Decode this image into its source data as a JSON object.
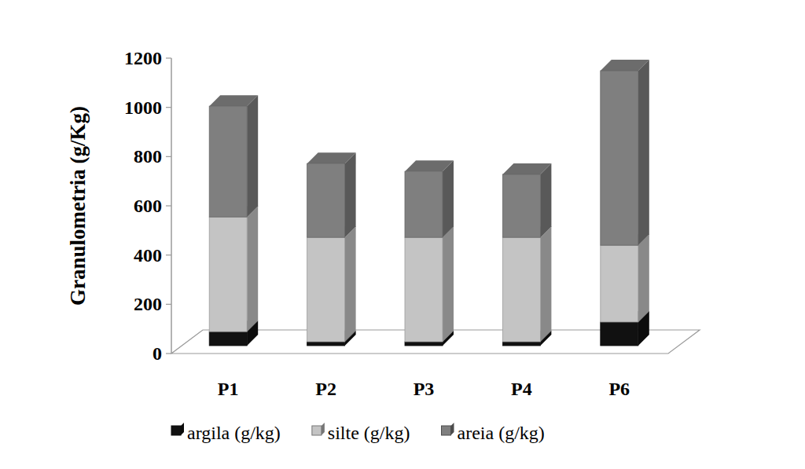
{
  "chart_data": {
    "type": "bar",
    "stacked": true,
    "grid": false,
    "legend": "bottom",
    "y_label": "Granulometria (g/Kg)",
    "categories": [
      "P1",
      "P2",
      "P3",
      "P4",
      "P6"
    ],
    "series": [
      {
        "name": "argila (g/kg)",
        "color": "#111111",
        "values": [
          57,
          16,
          16,
          16,
          96
        ]
      },
      {
        "name": "silte (g/kg)",
        "color": "#c4c4c4",
        "values": [
          466,
          424,
          424,
          424,
          312
        ]
      },
      {
        "name": "areia (g/kg)",
        "color": "#7f7f7f",
        "values": [
          450,
          300,
          268,
          256,
          709
        ]
      }
    ],
    "ylim": [
      0,
      1200
    ],
    "yticks": [
      0,
      200,
      400,
      600,
      800,
      1000,
      1200
    ]
  }
}
